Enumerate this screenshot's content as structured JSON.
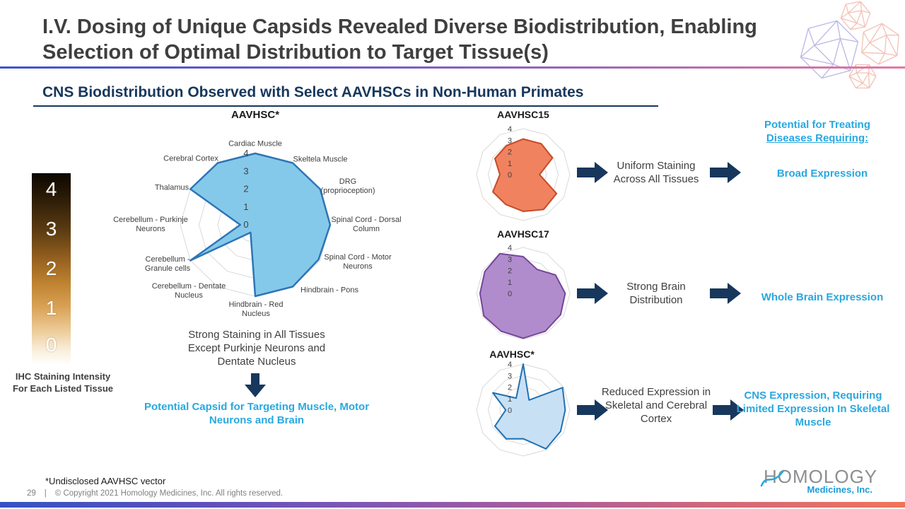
{
  "slide": {
    "title_line1": "I.V. Dosing of Unique Capsids Revealed Diverse Biodistribution, Enabling",
    "title_line2": "Selection of Optimal Distribution to Target Tissue(s)",
    "subtitle": "CNS Biodistribution Observed with Select AAVHSCs in Non-Human Primates",
    "footnote": "*Undisclosed AAVHSC vector",
    "page_number": "29",
    "divider": "|",
    "copyright": "© Copyright 2021 Homology Medicines, Inc. All rights reserved.",
    "logo": {
      "name": "HOMOLOGY",
      "tagline": "Medicines, Inc."
    }
  },
  "legend": {
    "ticks": [
      "4",
      "3",
      "2",
      "1",
      "0"
    ],
    "caption_line1": "IHC Staining Intensity",
    "caption_line2": "For Each Listed Tissue"
  },
  "main_chart": {
    "caption": "Strong Staining in All Tissues Except Purkinje Neurons and Dentate Nucleus",
    "conclusion": "Potential Capsid for Targeting Muscle, Motor Neurons and Brain"
  },
  "right_panel": {
    "header_line1": "Potential for Treating",
    "header_line2": "Diseases Requiring:",
    "rows": [
      {
        "observation": "Uniform Staining Across All Tissues",
        "implication": "Broad Expression"
      },
      {
        "observation": "Strong Brain Distribution",
        "implication": "Whole Brain Expression"
      },
      {
        "observation": "Reduced Expression in Skeletal and Cerebral Cortex",
        "implication": "CNS Expression, Requiring Limited Expression In Skeletal Muscle"
      }
    ]
  },
  "colors": {
    "navy": "#17375D",
    "teal": "#29A8DF",
    "title_gray": "#3F3F3F",
    "grid_gray": "#D9D9D9"
  },
  "chart_data": [
    {
      "type": "radar",
      "title": "AAVHSC*",
      "categories": [
        "Cardiac Muscle",
        "Skeltela Muscle",
        "DRG (proprioception)",
        "Spinal Cord - Dorsal Column",
        "Spinal Cord - Motor Neurons",
        "Hindbrain - Pons",
        "Hindbrain - Red Nucleus",
        "Cerebellum - Dentate Nucleus",
        "Cerebellum - Granule cells",
        "Cerebellum - Purkinje Neurons",
        "Thalamus",
        "Cerebral Cortex"
      ],
      "values": [
        4,
        4,
        4,
        4,
        3.9,
        4,
        4,
        0.5,
        4,
        0.8,
        4,
        4
      ],
      "max": 4,
      "tick_labels": [
        "0",
        "1",
        "2",
        "3",
        "4"
      ],
      "ylim": [
        0,
        4
      ],
      "grid": true,
      "legend_position": "none",
      "fill": "#85C9EA",
      "stroke": "#2E75B6"
    },
    {
      "type": "radar",
      "title": "AAVHSC15",
      "categories": [
        "Cardiac Muscle",
        "Skeltela Muscle",
        "DRG (proprioception)",
        "Spinal Cord - Dorsal Column",
        "Spinal Cord - Motor Neurons",
        "Hindbrain - Pons",
        "Hindbrain - Red Nucleus",
        "Cerebellum - Dentate Nucleus",
        "Cerebellum - Granule cells",
        "Cerebellum - Purkinje Neurons",
        "Thalamus",
        "Cerebral Cortex"
      ],
      "values": [
        3.1,
        3.1,
        2.9,
        1.4,
        3.3,
        3.5,
        3.2,
        3.0,
        3.0,
        2.0,
        2.8,
        2.9
      ],
      "max": 4,
      "tick_labels": [
        "0",
        "1",
        "2",
        "3",
        "4"
      ],
      "ylim": [
        0,
        4
      ],
      "grid": true,
      "legend_position": "none",
      "fill": "#F0825F",
      "stroke": "#C74A26"
    },
    {
      "type": "radar",
      "title": "AAVHSC17",
      "categories": [
        "Cardiac Muscle",
        "Skeltela Muscle",
        "DRG (proprioception)",
        "Spinal Cord - Dorsal Column",
        "Spinal Cord - Motor Neurons",
        "Hindbrain - Pons",
        "Hindbrain - Red Nucleus",
        "Cerebellum - Dentate Nucleus",
        "Cerebellum - Granule cells",
        "Cerebellum - Purkinje Neurons",
        "Thalamus",
        "Cerebral Cortex"
      ],
      "values": [
        3.2,
        2.4,
        3.2,
        3.6,
        3.7,
        3.8,
        3.9,
        3.8,
        3.9,
        3.7,
        3.8,
        4
      ],
      "max": 4,
      "tick_labels": [
        "0",
        "1",
        "2",
        "3",
        "4"
      ],
      "ylim": [
        0,
        4
      ],
      "grid": true,
      "legend_position": "none",
      "fill": "#B08CCC",
      "stroke": "#76459B"
    },
    {
      "type": "radar",
      "title": "AAVHSC*",
      "categories": [
        "Cardiac Muscle",
        "Skeltela Muscle",
        "DRG (proprioception)",
        "Spinal Cord - Dorsal Column",
        "Spinal Cord - Motor Neurons",
        "Hindbrain - Pons",
        "Hindbrain - Red Nucleus",
        "Cerebellum - Dentate Nucleus",
        "Cerebellum - Granule cells",
        "Cerebellum - Purkinje Neurons",
        "Thalamus",
        "Cerebral Cortex"
      ],
      "values": [
        4,
        1.0,
        3.9,
        3.6,
        3.7,
        3.9,
        2.5,
        2.9,
        2.8,
        1.5,
        3.0,
        1.2
      ],
      "max": 4,
      "tick_labels": [
        "0",
        "1",
        "2",
        "3",
        "4"
      ],
      "ylim": [
        0,
        4
      ],
      "grid": true,
      "legend_position": "none",
      "fill": "#C8E0F4",
      "stroke": "#2071B2"
    }
  ]
}
